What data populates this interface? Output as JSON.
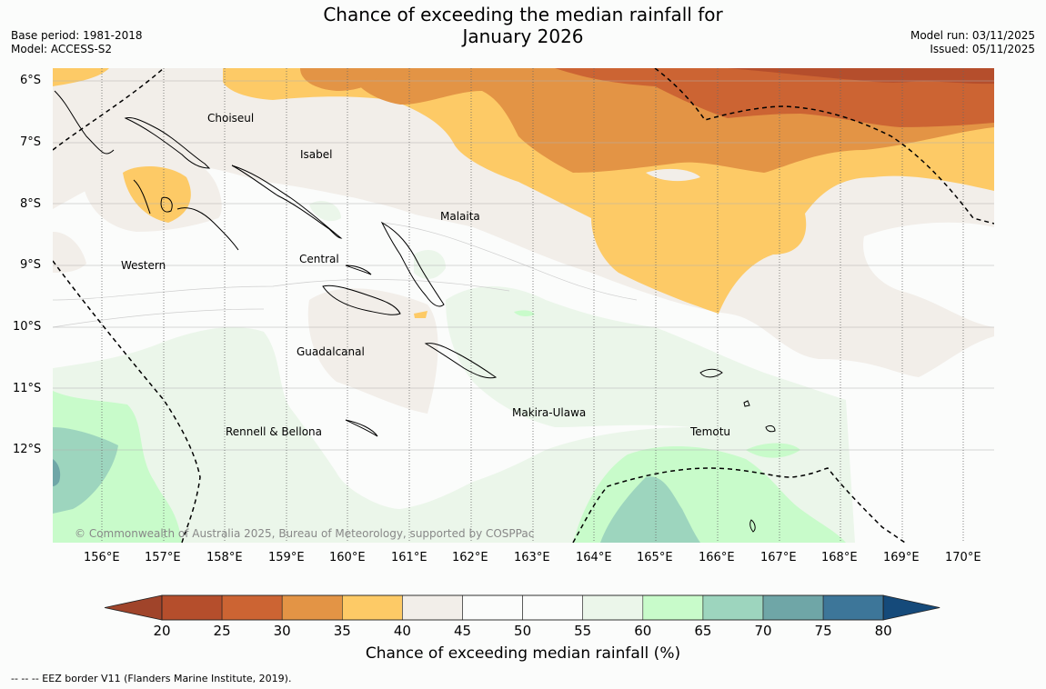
{
  "title_line1": "Chance of exceeding the median rainfall for",
  "title_line2": "January 2026",
  "meta": {
    "base_period": "Base period: 1981-2018",
    "model": "Model: ACCESS-S2",
    "model_run": "Model run: 03/11/2025",
    "issued": "Issued: 05/11/2025"
  },
  "map": {
    "lat_labels": [
      "6°S",
      "7°S",
      "8°S",
      "9°S",
      "10°S",
      "11°S",
      "12°S"
    ],
    "lon_labels": [
      "156°E",
      "157°E",
      "158°E",
      "159°E",
      "160°E",
      "161°E",
      "162°E",
      "163°E",
      "164°E",
      "165°E",
      "166°E",
      "167°E",
      "168°E",
      "169°E",
      "170°E"
    ],
    "province_labels": [
      "Choiseul",
      "Isabel",
      "Malaita",
      "Western",
      "Central",
      "Guadalcanal",
      "Makira-Ulawa",
      "Rennell & Bellona",
      "Temotu"
    ],
    "copyright": "© Commonwealth of Australia 2025, Bureau of Meteorology, supported by COSPPac"
  },
  "colorbar": {
    "ticks": [
      "20",
      "25",
      "30",
      "35",
      "40",
      "45",
      "50",
      "55",
      "60",
      "65",
      "70",
      "75",
      "80"
    ],
    "colors": [
      "#a0442a",
      "#b54e2c",
      "#cc6433",
      "#e39445",
      "#fdca66",
      "#f2eee9",
      "#fbfcfb",
      "#fbfcfb",
      "#ebf6ea",
      "#c8fbca",
      "#9dd5be",
      "#6fa6a7",
      "#3d7699",
      "#154a7a"
    ],
    "title": "Chance of exceeding median rainfall (%)"
  },
  "footnote": "--  --  -- EEZ border V11 (Flanders Marine Institute, 2019)."
}
